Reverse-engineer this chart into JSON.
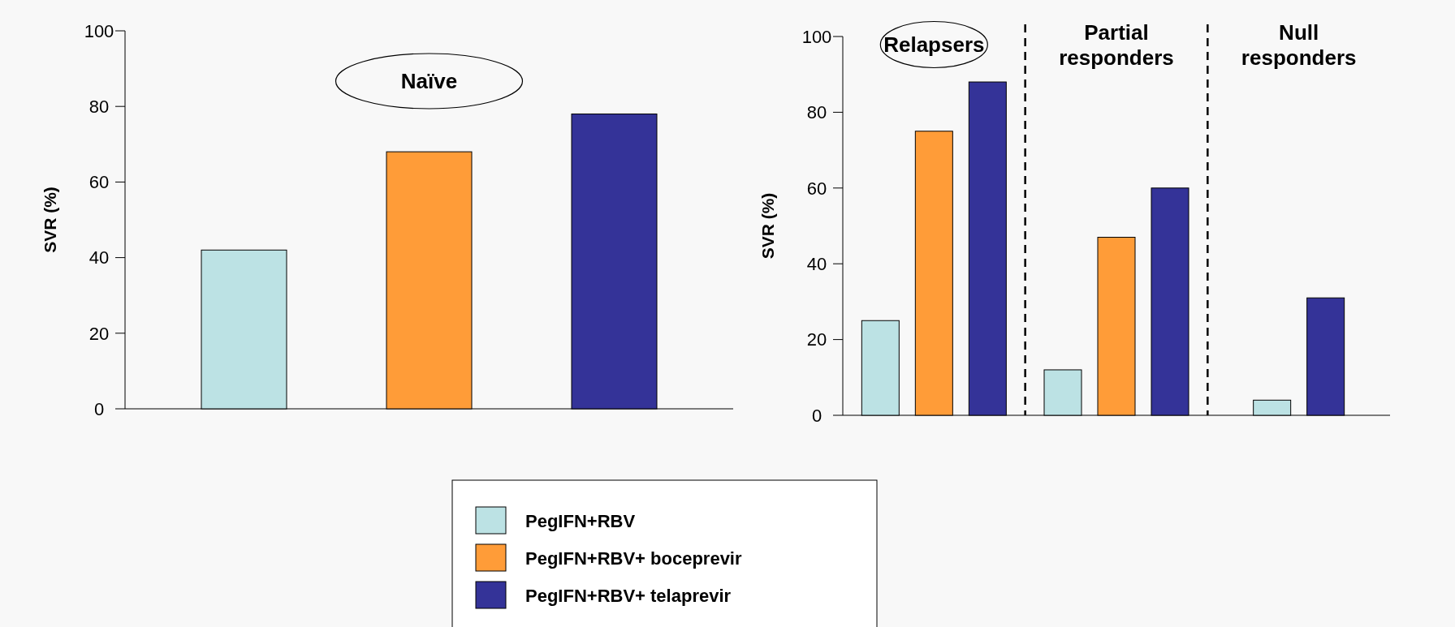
{
  "chart_data": [
    {
      "type": "bar",
      "ylabel": "SVR (%)",
      "categories": [
        "Naïve"
      ],
      "ylim": [
        0,
        100
      ],
      "yticks": [
        0,
        20,
        40,
        60,
        80,
        100
      ],
      "series": [
        {
          "color": "#bce2e4",
          "values": [
            42
          ]
        },
        {
          "color": "#ff9c38",
          "values": [
            68
          ]
        },
        {
          "color": "#343398",
          "values": [
            78
          ]
        }
      ]
    },
    {
      "type": "bar",
      "ylabel": "SVR (%)",
      "categories": [
        "Relapsers",
        "Partial responders",
        "Null responders"
      ],
      "ylim": [
        0,
        100
      ],
      "yticks": [
        0,
        20,
        40,
        60,
        80,
        100
      ],
      "legend": "bottom",
      "series": [
        {
          "name": "PegIFN+RBV",
          "color": "#bce2e4",
          "values": [
            25,
            12,
            4
          ]
        },
        {
          "name": "PegIFN+RBV+ boceprevir",
          "color": "#ff9c38",
          "values": [
            75,
            47,
            null
          ]
        },
        {
          "name": "PegIFN+RBV+ telaprevir",
          "color": "#343398",
          "values": [
            88,
            60,
            31
          ]
        }
      ]
    }
  ]
}
